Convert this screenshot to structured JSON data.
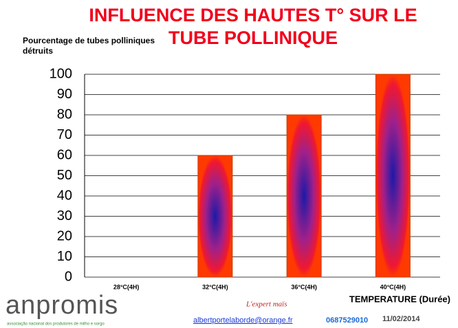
{
  "chart_data": {
    "type": "bar",
    "title_lines": [
      "INFLUENCE DES HAUTES T° SUR LE",
      "TUBE POLLINIQUE"
    ],
    "y_label_lines": [
      "Pourcentage de tubes polliniques",
      "détruits"
    ],
    "x_label": "TEMPERATURE (Durée)",
    "categories": [
      "28°C(4H)",
      "32°C(4H)",
      "36°C(4H)",
      "40°C(4H)"
    ],
    "values": [
      0,
      60,
      80,
      100
    ],
    "color": "#ff2a00",
    "ylim": [
      0,
      100
    ],
    "yticks": [
      0,
      10,
      20,
      30,
      40,
      50,
      60,
      70,
      80,
      90,
      100
    ],
    "grid": true
  },
  "footer": {
    "logo": "anpromis",
    "association": "associação nacional dos produtores de milho e sorgo",
    "slogan": "L'expert maïs",
    "email": "albertportelaborde@orange.fr",
    "phone": "0687529010",
    "date": "11/02/2014"
  }
}
